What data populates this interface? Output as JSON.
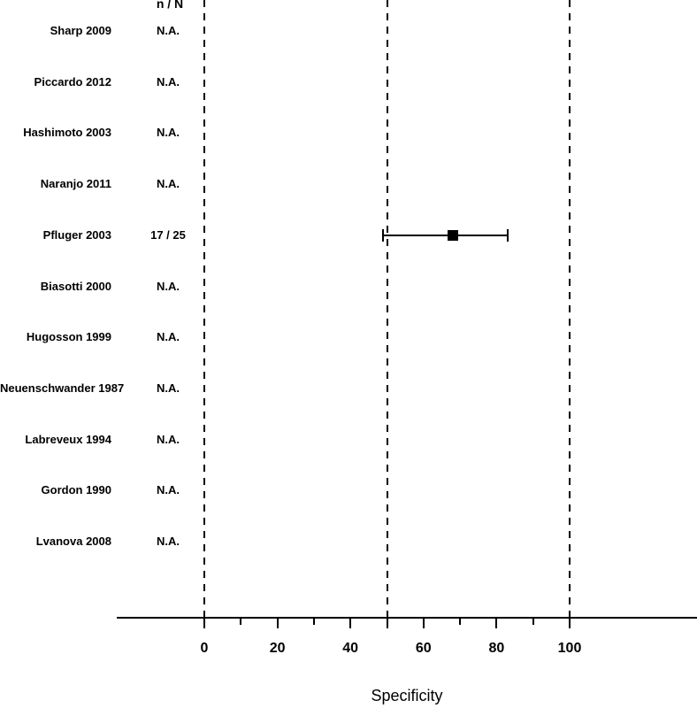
{
  "chart_data": {
    "type": "forest",
    "title": "",
    "xlabel": "Specificity",
    "column_header": "n / N",
    "axis": {
      "min": 0,
      "max": 100,
      "major_ticks": [
        0,
        20,
        40,
        60,
        80,
        100
      ],
      "minor_ticks": [
        10,
        30,
        50,
        70,
        90
      ],
      "reference_lines": [
        0,
        50,
        100
      ],
      "grid": "dashed-vertical-reference-lines"
    },
    "studies": [
      {
        "label": "Sharp 2009",
        "n_N": "N.A.",
        "estimate": null,
        "ci_low": null,
        "ci_high": null
      },
      {
        "label": "Piccardo 2012",
        "n_N": "N.A.",
        "estimate": null,
        "ci_low": null,
        "ci_high": null
      },
      {
        "label": "Hashimoto 2003",
        "n_N": "N.A.",
        "estimate": null,
        "ci_low": null,
        "ci_high": null
      },
      {
        "label": "Naranjo 2011",
        "n_N": "N.A.",
        "estimate": null,
        "ci_low": null,
        "ci_high": null
      },
      {
        "label": "Pfluger 2003",
        "n_N": "17 / 25",
        "estimate": 68,
        "ci_low": 49,
        "ci_high": 83
      },
      {
        "label": "Biasotti 2000",
        "n_N": "N.A.",
        "estimate": null,
        "ci_low": null,
        "ci_high": null
      },
      {
        "label": "Hugosson 1999",
        "n_N": "N.A.",
        "estimate": null,
        "ci_low": null,
        "ci_high": null
      },
      {
        "label": "Neuenschwander 1987",
        "n_N": "N.A.",
        "estimate": null,
        "ci_low": null,
        "ci_high": null
      },
      {
        "label": "Labreveux 1994",
        "n_N": "N.A.",
        "estimate": null,
        "ci_low": null,
        "ci_high": null
      },
      {
        "label": "Gordon 1990",
        "n_N": "N.A.",
        "estimate": null,
        "ci_low": null,
        "ci_high": null
      },
      {
        "label": "Lvanova 2008",
        "n_N": "N.A.",
        "estimate": null,
        "ci_low": null,
        "ci_high": null
      }
    ],
    "colors": {
      "foreground": "#000000",
      "background": "#ffffff"
    }
  }
}
